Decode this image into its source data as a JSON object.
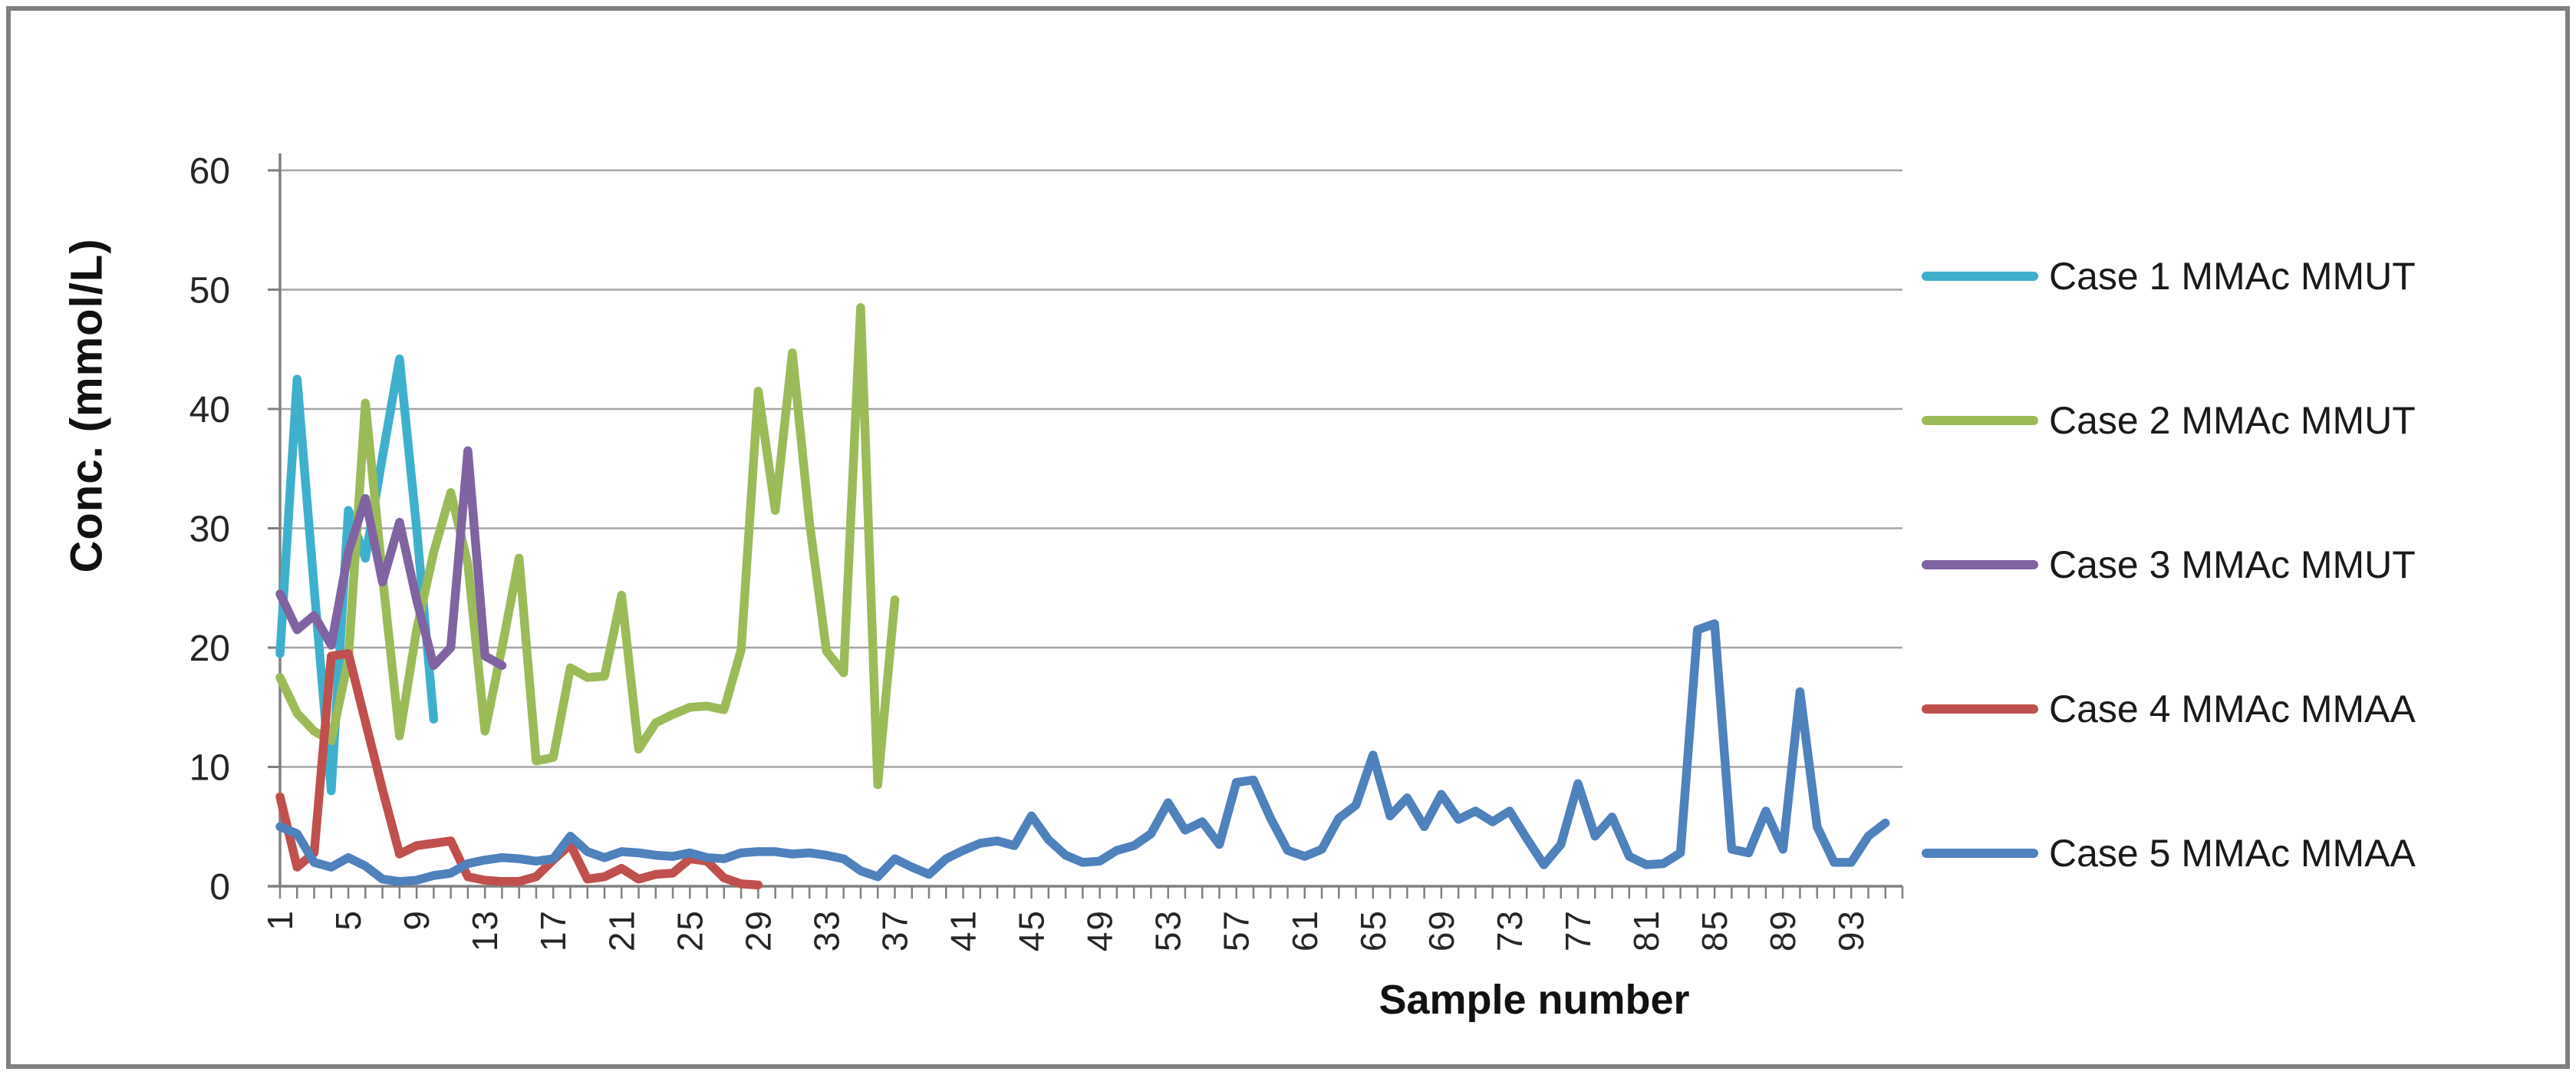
{
  "chart_data": {
    "type": "line",
    "title": "",
    "xlabel": "Sample number",
    "ylabel": "Conc. (mmol/L)",
    "ylim": [
      0,
      60
    ],
    "yticks": [
      0,
      10,
      20,
      30,
      40,
      50,
      60
    ],
    "x_first_sample": 1,
    "x_last_sample": 96,
    "xtick_every": 1,
    "xtick_labels": [
      "1",
      "5",
      "9",
      "13",
      "17",
      "21",
      "25",
      "29",
      "33",
      "37",
      "41",
      "45",
      "49",
      "53",
      "57",
      "61",
      "65",
      "69",
      "73",
      "77",
      "81",
      "85",
      "89",
      "93"
    ],
    "xtick_label_step": 4,
    "grid": "horizontal gridlines on",
    "legend_position": "right middle",
    "series": [
      {
        "name": "Case 1 MMAc MMUT",
        "color": "#3fb0cc",
        "start_x": 1,
        "values": [
          19.5,
          42.5,
          25,
          8,
          31.5,
          27.5,
          36,
          44.2,
          30,
          14
        ]
      },
      {
        "name": "Case 2 MMAc MMUT",
        "color": "#9bbb59",
        "start_x": 1,
        "values": [
          17.5,
          14.5,
          13,
          12.2,
          19,
          40.5,
          26,
          12.6,
          21.5,
          28,
          33,
          27,
          13,
          20,
          27.5,
          10.5,
          10.8,
          18.3,
          17.5,
          17.6,
          24.4,
          11.5,
          13.7,
          14.4,
          15,
          15.1,
          14.8,
          19.8,
          41.5,
          31.5,
          44.7,
          30.5,
          19.7,
          17.9,
          48.5,
          8.5,
          24
        ]
      },
      {
        "name": "Case 3 MMAc MMUT",
        "color": "#8064a2",
        "start_x": 1,
        "values": [
          24.5,
          21.5,
          22.7,
          20.2,
          28,
          32.5,
          25.5,
          30.5,
          24,
          18.5,
          20,
          36.5,
          19.3,
          18.5
        ]
      },
      {
        "name": "Case 4 MMAc MMAA",
        "color": "#c0504d",
        "start_x": 1,
        "values": [
          7.5,
          1.6,
          2.8,
          19.3,
          19.5,
          13.8,
          8.1,
          2.7,
          3.4,
          3.6,
          3.8,
          0.8,
          0.5,
          0.4,
          0.4,
          0.8,
          2.2,
          3.5,
          0.6,
          0.8,
          1.5,
          0.6,
          1.0,
          1.1,
          2.3,
          2.1,
          0.7,
          0.2,
          0.1
        ]
      },
      {
        "name": "Case 5 MMAc MMAA",
        "color": "#4f81bd",
        "start_x": 1,
        "values": [
          5.0,
          4.4,
          2.0,
          1.6,
          2.4,
          1.7,
          0.6,
          0.4,
          0.5,
          0.9,
          1.1,
          1.9,
          2.2,
          2.4,
          2.3,
          2.1,
          2.3,
          4.2,
          2.9,
          2.4,
          2.9,
          2.8,
          2.6,
          2.5,
          2.8,
          2.4,
          2.3,
          2.8,
          2.9,
          2.9,
          2.7,
          2.8,
          2.6,
          2.3,
          1.3,
          0.8,
          2.3,
          1.6,
          1.0,
          2.3,
          3.0,
          3.6,
          3.8,
          3.4,
          5.9,
          3.9,
          2.6,
          2.0,
          2.1,
          3.0,
          3.4,
          4.4,
          7.0,
          4.7,
          5.4,
          3.5,
          8.7,
          8.9,
          5.7,
          3.0,
          2.5,
          3.1,
          5.7,
          6.8,
          11.0,
          5.9,
          7.4,
          5.0,
          7.7,
          5.6,
          6.3,
          5.4,
          6.3,
          4.0,
          1.8,
          3.5,
          8.6,
          4.2,
          5.8,
          2.5,
          1.8,
          1.9,
          2.8,
          21.5,
          22.0,
          3.1,
          2.8,
          6.3,
          3.1,
          16.3,
          5.0,
          2.0,
          2.0,
          4.2,
          5.3
        ]
      }
    ]
  },
  "titles": {
    "y_axis": "Conc. (mmol/L)",
    "x_axis": "Sample number"
  },
  "style": {
    "gridline_color": "#a6a6a6",
    "axis_color": "#808080",
    "tick_label_color": "#262626",
    "title_color": "#111111",
    "frame_border_color": "#7f7f7f",
    "background_color": "#ffffff"
  },
  "legend": {
    "items": [
      {
        "label": "Case 1 MMAc MMUT",
        "color": "#3fb0cc"
      },
      {
        "label": "Case 2 MMAc MMUT",
        "color": "#9bbb59"
      },
      {
        "label": "Case 3 MMAc MMUT",
        "color": "#8064a2"
      },
      {
        "label": "Case 4 MMAc MMAA",
        "color": "#c0504d"
      },
      {
        "label": "Case 5 MMAc MMAA",
        "color": "#4f81bd"
      }
    ]
  }
}
